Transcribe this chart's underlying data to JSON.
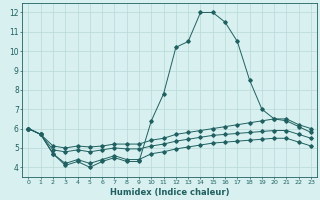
{
  "x": [
    0,
    1,
    2,
    3,
    4,
    5,
    6,
    7,
    8,
    9,
    10,
    11,
    12,
    13,
    14,
    15,
    16,
    17,
    18,
    19,
    20,
    21,
    22,
    23
  ],
  "line1": [
    6.0,
    5.7,
    4.7,
    4.1,
    4.3,
    4.0,
    4.3,
    4.5,
    4.3,
    4.3,
    6.4,
    7.8,
    10.2,
    10.5,
    12.0,
    12.0,
    11.5,
    10.5,
    8.5,
    7.0,
    6.5,
    6.4,
    6.1,
    5.8
  ],
  "line2": [
    6.0,
    5.7,
    5.1,
    5.0,
    5.1,
    5.05,
    5.1,
    5.2,
    5.2,
    5.2,
    5.4,
    5.5,
    5.7,
    5.8,
    5.9,
    6.0,
    6.1,
    6.2,
    6.3,
    6.4,
    6.5,
    6.5,
    6.2,
    6.0
  ],
  "line3": [
    6.0,
    5.7,
    4.9,
    4.8,
    4.9,
    4.8,
    4.9,
    5.0,
    4.95,
    4.95,
    5.1,
    5.2,
    5.35,
    5.45,
    5.55,
    5.65,
    5.7,
    5.75,
    5.8,
    5.85,
    5.9,
    5.9,
    5.7,
    5.5
  ],
  "line4": [
    6.0,
    5.7,
    4.7,
    4.2,
    4.4,
    4.2,
    4.4,
    4.6,
    4.4,
    4.4,
    4.7,
    4.8,
    4.95,
    5.05,
    5.15,
    5.25,
    5.3,
    5.35,
    5.4,
    5.45,
    5.5,
    5.5,
    5.3,
    5.1
  ],
  "color": "#206060",
  "bg_color": "#d8f0f0",
  "grid_color": "#b8d8d8",
  "xlabel": "Humidex (Indice chaleur)",
  "xlim": [
    -0.5,
    23.5
  ],
  "ylim": [
    3.5,
    12.5
  ],
  "yticks": [
    4,
    5,
    6,
    7,
    8,
    9,
    10,
    11,
    12
  ],
  "xticks": [
    0,
    1,
    2,
    3,
    4,
    5,
    6,
    7,
    8,
    9,
    10,
    11,
    12,
    13,
    14,
    15,
    16,
    17,
    18,
    19,
    20,
    21,
    22,
    23
  ]
}
